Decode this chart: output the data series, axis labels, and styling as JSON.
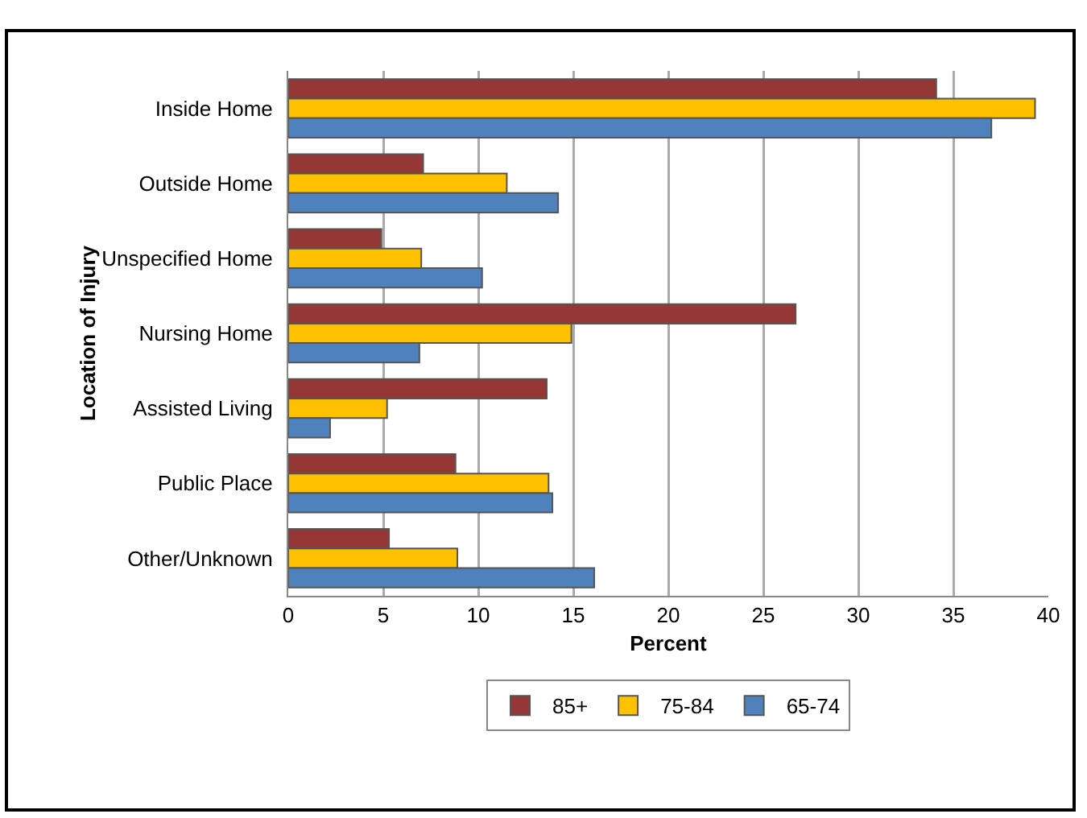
{
  "chart_data": {
    "type": "bar",
    "orientation": "horizontal",
    "xlabel": "Percent",
    "ylabel": "Location of Injury",
    "categories": [
      "Inside Home",
      "Outside Home",
      "Unspecified Home",
      "Nursing Home",
      "Assisted Living",
      "Public Place",
      "Other/Unknown"
    ],
    "series": [
      {
        "name": "85+",
        "color": "#953735",
        "values": [
          34.1,
          7.1,
          4.9,
          26.7,
          13.6,
          8.8,
          5.3
        ]
      },
      {
        "name": "75-84",
        "color": "#ffc000",
        "values": [
          39.3,
          11.5,
          7.0,
          14.9,
          5.2,
          13.7,
          8.9
        ]
      },
      {
        "name": "65-74",
        "color": "#4f81bd",
        "values": [
          37.0,
          14.2,
          10.2,
          6.9,
          2.2,
          13.9,
          16.1
        ]
      }
    ],
    "xlim": [
      0,
      40
    ],
    "xticks": [
      0,
      5,
      10,
      15,
      20,
      25,
      30,
      35,
      40
    ],
    "grid": "x",
    "legend": "bottom"
  }
}
